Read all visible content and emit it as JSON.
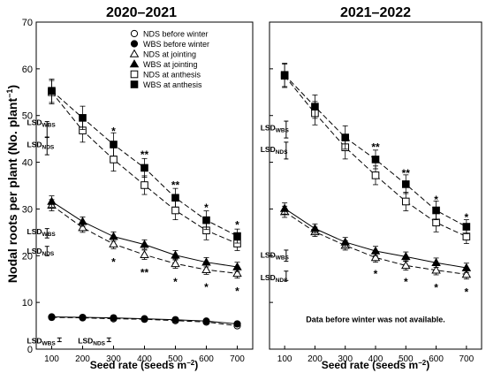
{
  "figure": {
    "ylabel_main": "Nodal roots per plant (No. plant",
    "ylabel_sup": "−1",
    "ylabel_close": ")"
  },
  "chart_data": [
    {
      "type": "line",
      "title": "2020–2021",
      "xlabel_main": "Seed rate (seeds m",
      "xlabel_sup": "−2",
      "xlabel_close": ")",
      "x": [
        100,
        200,
        300,
        400,
        500,
        600,
        700
      ],
      "xlim": [
        50,
        750
      ],
      "ylim": [
        0,
        70
      ],
      "yticks": [
        0,
        10,
        20,
        30,
        40,
        50,
        60,
        70
      ],
      "series": [
        {
          "name": "NDS before winter",
          "marker": "circle-open",
          "values": [
            6.8,
            6.7,
            6.5,
            6.4,
            6.1,
            5.8,
            5.0
          ],
          "err": [
            0.5,
            0.4,
            0.4,
            0.4,
            0.4,
            0.4,
            0.4
          ]
        },
        {
          "name": "WBS before winter",
          "marker": "circle-filled",
          "values": [
            6.9,
            6.8,
            6.7,
            6.5,
            6.3,
            6.0,
            5.4
          ],
          "err": [
            0.5,
            0.4,
            0.4,
            0.4,
            0.4,
            0.4,
            0.4
          ]
        },
        {
          "name": "NDS at jointing",
          "marker": "triangle-open",
          "values": [
            30.8,
            26.0,
            22.5,
            20.2,
            18.3,
            17.0,
            16.2
          ],
          "err": [
            1.2,
            1.0,
            1.0,
            1.0,
            1.0,
            1.0,
            1.0
          ]
        },
        {
          "name": "WBS at jointing",
          "marker": "triangle-filled",
          "values": [
            31.6,
            27.3,
            24.1,
            22.4,
            20.1,
            18.6,
            17.6
          ],
          "err": [
            1.2,
            1.0,
            1.0,
            1.0,
            1.0,
            1.0,
            1.0
          ]
        },
        {
          "name": "NDS at anthesis",
          "marker": "square-open",
          "values": [
            55.0,
            46.8,
            40.6,
            35.1,
            29.7,
            25.4,
            22.6
          ],
          "err": [
            2.5,
            2.5,
            2.5,
            2.0,
            2.0,
            2.0,
            1.5
          ]
        },
        {
          "name": "WBS at anthesis",
          "marker": "square-filled",
          "values": [
            55.3,
            49.5,
            43.8,
            38.8,
            32.4,
            27.6,
            24.2
          ],
          "err": [
            2.5,
            2.5,
            2.5,
            2.0,
            2.0,
            2.0,
            1.5
          ]
        }
      ],
      "significance": [
        {
          "x": 300,
          "y": 46.8,
          "text": "*"
        },
        {
          "x": 400,
          "y": 41.8,
          "text": "**"
        },
        {
          "x": 500,
          "y": 35.3,
          "text": "**"
        },
        {
          "x": 600,
          "y": 30.5,
          "text": "*"
        },
        {
          "x": 700,
          "y": 26.8,
          "text": "*"
        },
        {
          "x": 300,
          "y": 18.8,
          "text": "*"
        },
        {
          "x": 400,
          "y": 16.6,
          "text": "**"
        },
        {
          "x": 500,
          "y": 14.6,
          "text": "*"
        },
        {
          "x": 600,
          "y": 13.4,
          "text": "*"
        },
        {
          "x": 700,
          "y": 12.6,
          "text": "*"
        }
      ],
      "lsd": [
        {
          "label": "LSD",
          "sub": "WBS",
          "label_x": 20,
          "label_y": 48.0,
          "bar_x": 85,
          "y_center": 47.0,
          "half": 1.7
        },
        {
          "label": "LSD",
          "sub": "NDS",
          "label_x": 20,
          "label_y": 43.2,
          "bar_x": 85,
          "y_center": 43.5,
          "half": 1.9
        },
        {
          "label": "LSD",
          "sub": "WBS",
          "label_x": 20,
          "label_y": 24.6,
          "bar_x": 85,
          "y_center": 24.8,
          "half": 1.0
        },
        {
          "label": "LSD",
          "sub": "NDS",
          "label_x": 20,
          "label_y": 20.4,
          "bar_x": 85,
          "y_center": 21.0,
          "half": 1.0
        },
        {
          "label": "LSD",
          "sub": "WBS",
          "label_x": 20,
          "label_y": 1.2,
          "bar_x": 125,
          "y_center": 2.0,
          "half": 0.4
        },
        {
          "label": "LSD",
          "sub": "NDS",
          "label_x": 185,
          "label_y": 1.2,
          "bar_x": 285,
          "y_center": 2.0,
          "half": 0.4
        }
      ],
      "legend_position": "top-right"
    },
    {
      "type": "line",
      "title": "2021–2022",
      "xlabel_main": "Seed rate (seeds m",
      "xlabel_sup": "−2",
      "xlabel_close": ")",
      "x": [
        100,
        200,
        300,
        400,
        500,
        600,
        700
      ],
      "xlim": [
        50,
        750
      ],
      "ylim": [
        0,
        70
      ],
      "note": "Data before winter was not available.",
      "note_x": 400,
      "note_y": 5.8,
      "series": [
        {
          "name": "NDS at jointing",
          "marker": "triangle-open",
          "values": [
            29.4,
            25.1,
            22.2,
            19.6,
            17.9,
            16.9,
            16.0
          ],
          "err": [
            1.2,
            1.0,
            1.0,
            1.0,
            1.0,
            1.0,
            1.0
          ]
        },
        {
          "name": "WBS at jointing",
          "marker": "triangle-filled",
          "values": [
            30.1,
            25.8,
            22.9,
            21.0,
            19.8,
            18.5,
            17.4
          ],
          "err": [
            1.2,
            1.0,
            1.0,
            1.0,
            1.0,
            1.0,
            1.0
          ]
        },
        {
          "name": "NDS at anthesis",
          "marker": "square-open",
          "values": [
            58.5,
            50.5,
            43.2,
            37.2,
            31.6,
            27.1,
            24.1
          ],
          "err": [
            2.5,
            2.5,
            2.5,
            2.0,
            2.0,
            2.0,
            1.5
          ]
        },
        {
          "name": "WBS at anthesis",
          "marker": "square-filled",
          "values": [
            58.7,
            51.9,
            45.3,
            40.6,
            35.3,
            29.7,
            26.2
          ],
          "err": [
            2.5,
            2.5,
            2.5,
            2.0,
            2.0,
            2.0,
            1.5
          ]
        }
      ],
      "significance": [
        {
          "x": 400,
          "y": 43.4,
          "text": "**"
        },
        {
          "x": 500,
          "y": 37.8,
          "text": "**"
        },
        {
          "x": 600,
          "y": 32.2,
          "text": "*"
        },
        {
          "x": 700,
          "y": 28.4,
          "text": "*"
        },
        {
          "x": 400,
          "y": 16.3,
          "text": "*"
        },
        {
          "x": 500,
          "y": 14.6,
          "text": "*"
        },
        {
          "x": 600,
          "y": 13.3,
          "text": "*"
        },
        {
          "x": 700,
          "y": 12.4,
          "text": "*"
        }
      ],
      "lsd": [
        {
          "label": "LSD",
          "sub": "WBS",
          "label_x": 20,
          "label_y": 46.8,
          "bar_x": 105,
          "y_center": 47.0,
          "half": 1.8
        },
        {
          "label": "LSD",
          "sub": "NDS",
          "label_x": 20,
          "label_y": 42.2,
          "bar_x": 105,
          "y_center": 42.5,
          "half": 1.8
        },
        {
          "label": "LSD",
          "sub": "WBS",
          "label_x": 20,
          "label_y": 19.6,
          "bar_x": 105,
          "y_center": 20.0,
          "half": 1.2
        },
        {
          "label": "LSD",
          "sub": "NDS",
          "label_x": 20,
          "label_y": 14.8,
          "bar_x": 105,
          "y_center": 15.7,
          "half": 1.0
        }
      ]
    }
  ]
}
